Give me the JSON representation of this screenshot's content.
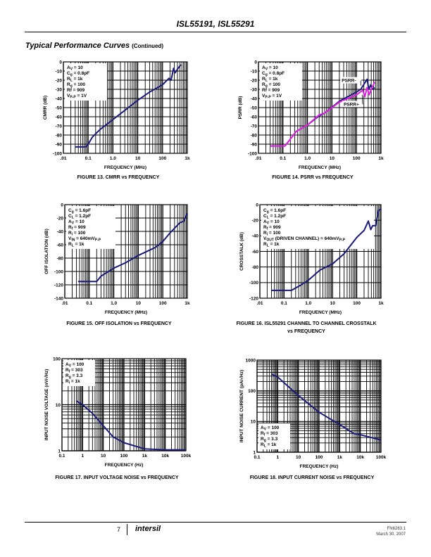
{
  "header": {
    "title": "ISL55191, ISL55291"
  },
  "section": {
    "title": "Typical Performance Curves",
    "note": "(Continued)"
  },
  "footer": {
    "page": "7",
    "logo": "intersil",
    "doc_number": "FN6263.1",
    "date": "March 30, 2007"
  },
  "chart_data": [
    {
      "type": "line",
      "figure": "FIGURE 13.   CMRR vs FREQUENCY",
      "xlabel": "FREQUENCY (MHz)",
      "ylabel": "CMRR (dB)",
      "xscale": "log",
      "xlim": [
        0.01,
        1000
      ],
      "yscale": "linear",
      "ylim": [
        -100,
        0
      ],
      "grid": true,
      "xticks": [
        {
          "v": 0.01,
          "label": ".01"
        },
        {
          "v": 0.1,
          "label": "0.1"
        },
        {
          "v": 1,
          "label": "1.0"
        },
        {
          "v": 10,
          "label": "10"
        },
        {
          "v": 100,
          "label": "100"
        },
        {
          "v": 1000,
          "label": "1k"
        }
      ],
      "yticks": [
        {
          "v": 0,
          "label": "0"
        },
        {
          "v": -10,
          "label": "-10"
        },
        {
          "v": -20,
          "label": "-20"
        },
        {
          "v": -30,
          "label": "-30"
        },
        {
          "v": -40,
          "label": "-40"
        },
        {
          "v": -50,
          "label": "-50"
        },
        {
          "v": -60,
          "label": "-60"
        },
        {
          "v": -70,
          "label": "-70"
        },
        {
          "v": -80,
          "label": "-80"
        },
        {
          "v": -90,
          "label": "-90"
        },
        {
          "v": -100,
          "label": "-100"
        }
      ],
      "legend": [
        {
          "p": "A",
          "s": "V",
          "t": " = 10"
        },
        {
          "p": "C",
          "s": "g",
          "t": " = 0.8pF"
        },
        {
          "p": "R",
          "s": "L",
          "t": " = 1k"
        },
        {
          "p": "R",
          "s": "g",
          "t": " = 100"
        },
        {
          "p": "Rf = 909",
          "s": "",
          "t": ""
        },
        {
          "p": "V",
          "s": "P-P",
          "t": " = 1V"
        }
      ],
      "series": [
        {
          "name": "CMRR",
          "color": "#1a1a7a",
          "points": [
            [
              0.03,
              -93
            ],
            [
              0.08,
              -93
            ],
            [
              0.1,
              -90
            ],
            [
              0.15,
              -82
            ],
            [
              0.3,
              -74
            ],
            [
              1,
              -63
            ],
            [
              3,
              -53
            ],
            [
              10,
              -42
            ],
            [
              30,
              -33
            ],
            [
              100,
              -25
            ],
            [
              180,
              -18
            ],
            [
              220,
              -20
            ],
            [
              280,
              -7
            ],
            [
              320,
              -12
            ],
            [
              400,
              -8
            ],
            [
              550,
              -3
            ]
          ]
        }
      ],
      "annotations": []
    },
    {
      "type": "line",
      "figure": "FIGURE 14.  PSRR vs FREQUENCY",
      "xlabel": "FREQUENCY (MHz)",
      "ylabel": "PSRR (dB)",
      "xscale": "log",
      "xlim": [
        0.01,
        1000
      ],
      "yscale": "linear",
      "ylim": [
        -100,
        0
      ],
      "grid": true,
      "xticks": [
        {
          "v": 0.01,
          "label": ".01"
        },
        {
          "v": 0.1,
          "label": "0.1"
        },
        {
          "v": 1,
          "label": "1.0"
        },
        {
          "v": 10,
          "label": "10"
        },
        {
          "v": 100,
          "label": "100"
        },
        {
          "v": 1000,
          "label": "1k"
        }
      ],
      "yticks": [
        {
          "v": 0,
          "label": "0"
        },
        {
          "v": -10,
          "label": "-10"
        },
        {
          "v": -20,
          "label": "-20"
        },
        {
          "v": -30,
          "label": "-30"
        },
        {
          "v": -40,
          "label": "-40"
        },
        {
          "v": -50,
          "label": "-50"
        },
        {
          "v": -60,
          "label": "-60"
        },
        {
          "v": -70,
          "label": "-70"
        },
        {
          "v": -80,
          "label": "-80"
        },
        {
          "v": -90,
          "label": "-90"
        },
        {
          "v": -100,
          "label": "-100"
        }
      ],
      "legend": [
        {
          "p": "A",
          "s": "V",
          "t": " = 10"
        },
        {
          "p": "C",
          "s": "g",
          "t": " = 0.8pF"
        },
        {
          "p": "R",
          "s": "L",
          "t": " = 1k"
        },
        {
          "p": "R",
          "s": "g",
          "t": " = 100"
        },
        {
          "p": "Rf = 909",
          "s": "",
          "t": ""
        },
        {
          "p": "V",
          "s": "P-P",
          "t": " = 1V"
        }
      ],
      "series": [
        {
          "name": "PSRR-",
          "color": "#1a1a7a",
          "points": [
            [
              0.03,
              -92
            ],
            [
              0.12,
              -92
            ],
            [
              0.35,
              -76
            ],
            [
              1,
              -69
            ],
            [
              3,
              -59
            ],
            [
              5,
              -56
            ],
            [
              20,
              -43
            ],
            [
              100,
              -33
            ],
            [
              150,
              -30
            ],
            [
              270,
              -19
            ],
            [
              320,
              -30
            ],
            [
              380,
              -25
            ],
            [
              450,
              -30
            ],
            [
              550,
              -28
            ]
          ]
        },
        {
          "name": "PSRR+",
          "color": "#e020e0",
          "points": [
            [
              0.03,
              -92
            ],
            [
              0.12,
              -92
            ],
            [
              0.35,
              -76
            ],
            [
              1,
              -69
            ],
            [
              3,
              -58
            ],
            [
              5,
              -56
            ],
            [
              20,
              -44
            ],
            [
              100,
              -36
            ],
            [
              180,
              -31
            ],
            [
              220,
              -38
            ],
            [
              270,
              -28
            ],
            [
              330,
              -36
            ],
            [
              400,
              -30
            ],
            [
              550,
              -22
            ]
          ]
        }
      ],
      "annotations": [
        {
          "text": "PSRR-",
          "at": [
            25,
            -22
          ],
          "to": [
            150,
            -26
          ]
        },
        {
          "text": "PSRR+",
          "at": [
            30,
            -48
          ],
          "to": [
            170,
            -36
          ]
        }
      ]
    },
    {
      "type": "line",
      "figure": "FIGURE 15.  OFF ISOLATION vs FREQUENCY",
      "xlabel": "FREQUENCY (MHz)",
      "ylabel": "OFF ISOLATION (dB)",
      "xscale": "log",
      "xlim": [
        0.01,
        1000
      ],
      "yscale": "linear",
      "ylim": [
        -140,
        0
      ],
      "grid": true,
      "xticks": [
        {
          "v": 0.01,
          "label": ".01"
        },
        {
          "v": 0.1,
          "label": "0.1"
        },
        {
          "v": 1,
          "label": "1.0"
        },
        {
          "v": 10,
          "label": "10"
        },
        {
          "v": 100,
          "label": "100"
        },
        {
          "v": 1000,
          "label": "1k"
        }
      ],
      "yticks": [
        {
          "v": 0,
          "label": "0"
        },
        {
          "v": -20,
          "label": "-20"
        },
        {
          "v": -40,
          "label": "-40"
        },
        {
          "v": -60,
          "label": "-60"
        },
        {
          "v": -80,
          "label": "-80"
        },
        {
          "v": -100,
          "label": "-100"
        },
        {
          "v": -120,
          "label": "-120"
        },
        {
          "v": -140,
          "label": "-140"
        }
      ],
      "legend": [
        {
          "p": "C",
          "s": "g",
          "t": " = 1.6pF"
        },
        {
          "p": "C",
          "s": "L",
          "t": " = 1.2pF"
        },
        {
          "p": "A",
          "s": "V",
          "t": " = 10"
        },
        {
          "p": "R",
          "s": "f",
          "t": " = 909"
        },
        {
          "p": "R",
          "s": "i",
          "t": " = 100"
        },
        {
          "p": "V",
          "s": "IN",
          "t": " = 640mV",
          "s2": "P-P"
        },
        {
          "p": "R",
          "s": "L",
          "t": " = 1k"
        }
      ],
      "series": [
        {
          "name": "Off isolation",
          "color": "#1a1a7a",
          "points": [
            [
              0.035,
              -115
            ],
            [
              0.2,
              -115
            ],
            [
              0.3,
              -107
            ],
            [
              1,
              -95
            ],
            [
              3,
              -87
            ],
            [
              10,
              -76
            ],
            [
              50,
              -64
            ],
            [
              100,
              -55
            ],
            [
              200,
              -42
            ],
            [
              500,
              -27
            ],
            [
              700,
              -25
            ],
            [
              1000,
              -13
            ]
          ]
        }
      ],
      "annotations": []
    },
    {
      "type": "line",
      "figure": "FIGURE 16.  ISL55291 CHANNEL TO CHANNEL CROSSTALK vs FREQUENCY",
      "figure_line1": "FIGURE 16.  ISL55291 CHANNEL TO CHANNEL CROSSTALK",
      "figure_line2": "vs FREQUENCY",
      "xlabel": "FREQUENCY (MHz)",
      "ylabel": "CROSSTALK (dB)",
      "xscale": "log",
      "xlim": [
        0.01,
        1000
      ],
      "yscale": "linear",
      "ylim": [
        -120,
        0
      ],
      "grid": true,
      "xticks": [
        {
          "v": 0.01,
          "label": ".01"
        },
        {
          "v": 0.1,
          "label": "0.1"
        },
        {
          "v": 1,
          "label": "1.0"
        },
        {
          "v": 10,
          "label": "10"
        },
        {
          "v": 100,
          "label": "100"
        },
        {
          "v": 1000,
          "label": "1k"
        }
      ],
      "yticks": [
        {
          "v": 0,
          "label": "0"
        },
        {
          "v": -20,
          "label": "-20"
        },
        {
          "v": -40,
          "label": "-40"
        },
        {
          "v": -60,
          "label": "-60"
        },
        {
          "v": -80,
          "label": "-80"
        },
        {
          "v": -100,
          "label": "-100"
        },
        {
          "v": -120,
          "label": "-120"
        }
      ],
      "legend": [
        {
          "p": "C",
          "s": "g",
          "t": " = 1.6pF"
        },
        {
          "p": "C",
          "s": "L",
          "t": " = 1.2pF"
        },
        {
          "p": "A",
          "s": "V",
          "t": " = 10"
        },
        {
          "p": "R",
          "s": "f",
          "t": " = 909"
        },
        {
          "p": "R",
          "s": "i",
          "t": " = 100"
        },
        {
          "p": "V",
          "s": "OUT",
          "t": " (DRIVEN CHANNEL) = 640mV",
          "s2": "P-P"
        },
        {
          "p": "R",
          "s": "L",
          "t": " = 1k"
        }
      ],
      "series": [
        {
          "name": "Crosstalk",
          "color": "#1a1a7a",
          "points": [
            [
              0.03,
              -110
            ],
            [
              0.2,
              -110
            ],
            [
              0.5,
              -103
            ],
            [
              1,
              -97
            ],
            [
              3,
              -84
            ],
            [
              10,
              -76
            ],
            [
              30,
              -63
            ],
            [
              100,
              -42
            ],
            [
              200,
              -33
            ],
            [
              300,
              -21
            ],
            [
              380,
              -32
            ],
            [
              450,
              -27
            ],
            [
              600,
              -27
            ],
            [
              800,
              -7
            ],
            [
              1000,
              -6
            ]
          ]
        }
      ],
      "annotations": []
    },
    {
      "type": "line",
      "figure": "FIGURE 17.  INPUT VOLTAGE NOISE vs FREQUENCY",
      "xlabel": "FREQUENCY (Hz)",
      "ylabel": "INPUT NOISE VOLTAGE (nV/√Hz)",
      "xscale": "log",
      "xlim": [
        0.1,
        100000
      ],
      "yscale": "log",
      "ylim": [
        1,
        100
      ],
      "grid": true,
      "xticks": [
        {
          "v": 0.1,
          "label": "0.1"
        },
        {
          "v": 1,
          "label": "1"
        },
        {
          "v": 10,
          "label": "10"
        },
        {
          "v": 100,
          "label": "100"
        },
        {
          "v": 1000,
          "label": "1k"
        },
        {
          "v": 10000,
          "label": "10k"
        },
        {
          "v": 100000,
          "label": "100k"
        }
      ],
      "yticks": [
        {
          "v": 100,
          "label": "100"
        },
        {
          "v": 10,
          "label": "10"
        },
        {
          "v": 1,
          "label": "1"
        }
      ],
      "legend": [
        {
          "p": "A",
          "s": "V",
          "t": " = 100"
        },
        {
          "p": "R",
          "s": "f",
          "t": " = 303"
        },
        {
          "p": "R",
          "s": "g",
          "t": " = 3.3"
        },
        {
          "p": "R",
          "s": "i",
          "t": " = 1k"
        }
      ],
      "series": [
        {
          "name": "Voltage noise",
          "color": "#1a1a7a",
          "points": [
            [
              0.5,
              12
            ],
            [
              1,
              10
            ],
            [
              3,
              6.5
            ],
            [
              10,
              3.5
            ],
            [
              30,
              2
            ],
            [
              100,
              1.5
            ],
            [
              1000,
              1.1
            ],
            [
              10000,
              1.05
            ],
            [
              100000,
              1.05
            ]
          ]
        }
      ],
      "annotations": []
    },
    {
      "type": "line",
      "figure": "FIGURE 18.  INPUT CURRENT NOISE vs FREQUENCY",
      "xlabel": "FREQUENCY (Hz)",
      "ylabel": "INPUT NOISE CURRENT (pA/√Hz)",
      "xscale": "log",
      "xlim": [
        0.1,
        100000
      ],
      "yscale": "log",
      "ylim": [
        1,
        1000
      ],
      "grid": true,
      "xticks": [
        {
          "v": 0.1,
          "label": "0.1"
        },
        {
          "v": 1,
          "label": "1"
        },
        {
          "v": 10,
          "label": "10"
        },
        {
          "v": 100,
          "label": "100"
        },
        {
          "v": 1000,
          "label": "1k"
        },
        {
          "v": 10000,
          "label": "10k"
        },
        {
          "v": 100000,
          "label": "100k"
        }
      ],
      "yticks": [
        {
          "v": 1000,
          "label": "1000"
        },
        {
          "v": 100,
          "label": "100"
        },
        {
          "v": 10,
          "label": "10"
        },
        {
          "v": 1,
          "label": "1"
        }
      ],
      "legend": [
        {
          "p": "A",
          "s": "V",
          "t": " = 100"
        },
        {
          "p": "R",
          "s": "f",
          "t": " = 303"
        },
        {
          "p": "R",
          "s": "g",
          "t": " = 3.3"
        },
        {
          "p": "R",
          "s": "L",
          "t": " = 1k"
        }
      ],
      "legend_position": "bottom-left",
      "series": [
        {
          "name": "Current noise",
          "color": "#1a1a7a",
          "points": [
            [
              0.5,
              350
            ],
            [
              1,
              280
            ],
            [
              10,
              70
            ],
            [
              100,
              20
            ],
            [
              1000,
              8
            ],
            [
              5000,
              4
            ],
            [
              10000,
              3.7
            ],
            [
              100000,
              2.5
            ]
          ]
        }
      ],
      "annotations": []
    }
  ]
}
